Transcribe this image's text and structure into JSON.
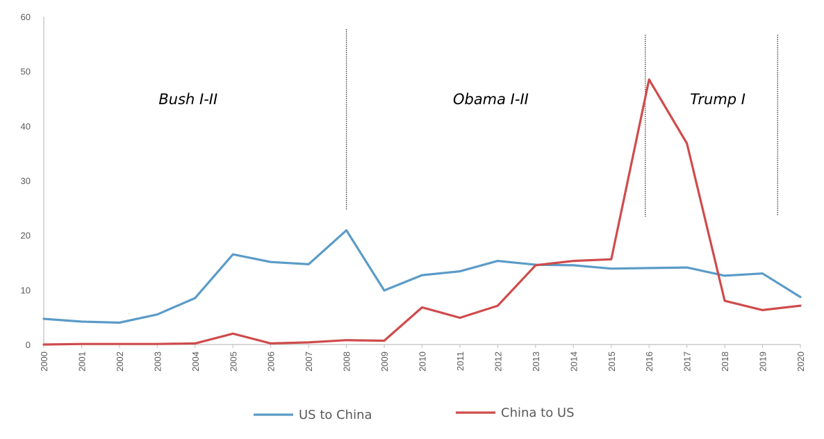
{
  "chart_data": {
    "type": "line",
    "title": "",
    "xlabel": "",
    "ylabel": "",
    "ylim": [
      0,
      60
    ],
    "yticks": [
      0,
      10,
      20,
      30,
      40,
      50,
      60
    ],
    "x": [
      "2000",
      "2001",
      "2002",
      "2003",
      "2004",
      "2005",
      "2006",
      "2007",
      "2008",
      "2009",
      "2010",
      "2011",
      "2012",
      "2013",
      "2014",
      "2015",
      "2016",
      "2017",
      "2018",
      "2019",
      "2020"
    ],
    "series": [
      {
        "name": "US to China",
        "color": "#5b9bc7",
        "values": [
          4.7,
          4.2,
          4.0,
          5.5,
          8.5,
          16.5,
          15.1,
          14.7,
          20.9,
          9.9,
          12.7,
          13.4,
          15.3,
          14.6,
          14.5,
          13.9,
          14.0,
          14.1,
          12.6,
          13.0,
          8.7
        ]
      },
      {
        "name": "China to US",
        "color": "#cf4b4b",
        "values": [
          0.0,
          0.1,
          0.1,
          0.1,
          0.2,
          2.0,
          0.2,
          0.4,
          0.8,
          0.7,
          6.8,
          4.9,
          7.1,
          14.5,
          15.3,
          15.6,
          48.5,
          36.8,
          8.0,
          6.3,
          7.1
        ]
      }
    ],
    "annotations": [
      {
        "text": "Bush I-II",
        "at_x": "2004"
      },
      {
        "text": "Obama I-II",
        "at_x": "2012"
      },
      {
        "text": "Trump I",
        "at_x": "2018"
      }
    ],
    "vlines": [
      {
        "at_x": 2008.0
      },
      {
        "at_x": 2015.9
      },
      {
        "at_x": 2019.4
      }
    ],
    "legend_position": "bottom",
    "grid": false
  }
}
